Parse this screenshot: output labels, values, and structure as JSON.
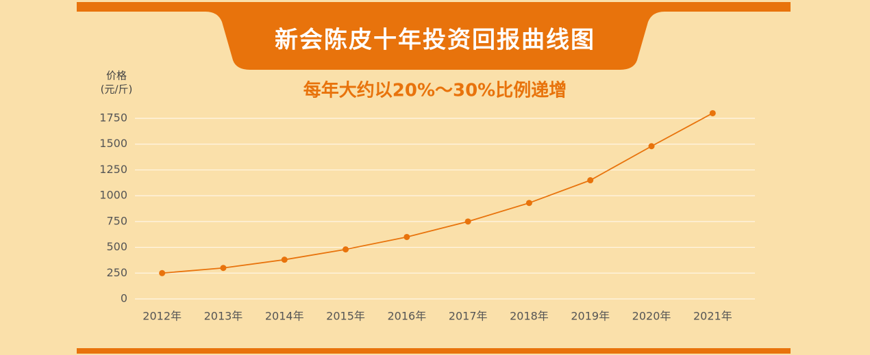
{
  "chart_data": {
    "type": "line",
    "title": "新会陈皮十年投资回报曲线图",
    "subtitle": "每年大约以20%～30%比例递增",
    "ylabel": [
      "价格",
      "(元/斤)"
    ],
    "categories": [
      "2012年",
      "2013年",
      "2014年",
      "2015年",
      "2016年",
      "2017年",
      "2018年",
      "2019年",
      "2020年",
      "2021年"
    ],
    "values": [
      250,
      300,
      380,
      480,
      600,
      750,
      930,
      1150,
      1480,
      1800
    ],
    "color": "#e8730c",
    "ylim": [
      0,
      1750
    ],
    "yticks": [
      0,
      250,
      500,
      750,
      1000,
      1250,
      1500,
      1750
    ],
    "grid": true
  }
}
